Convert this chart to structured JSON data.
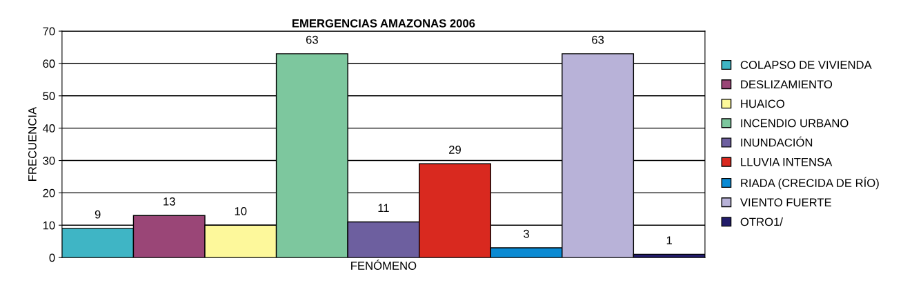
{
  "chart_data": {
    "type": "bar",
    "title": "EMERGENCIAS AMAZONAS 2006",
    "xlabel": "FENÓMENO",
    "ylabel": "FRECUENCIA",
    "categories": [
      null,
      null,
      null,
      null,
      null,
      null,
      null,
      null,
      null
    ],
    "series": [
      {
        "name": "COLAPSO DE VIVIENDA",
        "color": "#3fb5c5",
        "values": [
          9,
          null,
          null,
          null,
          null,
          null,
          null,
          null,
          null
        ]
      },
      {
        "name": "DESLIZAMIENTO",
        "color": "#9a4677",
        "values": [
          null,
          13,
          null,
          null,
          null,
          null,
          null,
          null,
          null
        ]
      },
      {
        "name": "HUAICO",
        "color": "#fdf89b",
        "values": [
          null,
          null,
          10,
          null,
          null,
          null,
          null,
          null,
          null
        ]
      },
      {
        "name": "INCENDIO URBANO",
        "color": "#7dc79e",
        "values": [
          null,
          null,
          null,
          63,
          null,
          null,
          null,
          null,
          null
        ]
      },
      {
        "name": "INUNDACIÓN",
        "color": "#6d5f9f",
        "values": [
          null,
          null,
          null,
          null,
          11,
          null,
          null,
          null,
          null
        ]
      },
      {
        "name": "LLUVIA INTENSA",
        "color": "#d9291f",
        "values": [
          null,
          null,
          null,
          null,
          null,
          29,
          null,
          null,
          null
        ]
      },
      {
        "name": "RIADA (CRECIDA DE RÍO)",
        "color": "#0a8ad3",
        "values": [
          null,
          null,
          null,
          null,
          null,
          null,
          3,
          null,
          null
        ]
      },
      {
        "name": "VIENTO FUERTE",
        "color": "#b8b2d8",
        "values": [
          null,
          null,
          null,
          null,
          null,
          null,
          null,
          63,
          null
        ]
      },
      {
        "name": "OTRO1/",
        "color": "#221c6a",
        "values": [
          null,
          null,
          null,
          null,
          null,
          null,
          null,
          null,
          1
        ]
      }
    ],
    "ylim": [
      0,
      70
    ],
    "yticks": [
      0,
      10,
      20,
      30,
      40,
      50,
      60,
      70
    ],
    "grid": "y",
    "legend": "right",
    "data_labels": true,
    "tick_labels": "y"
  }
}
